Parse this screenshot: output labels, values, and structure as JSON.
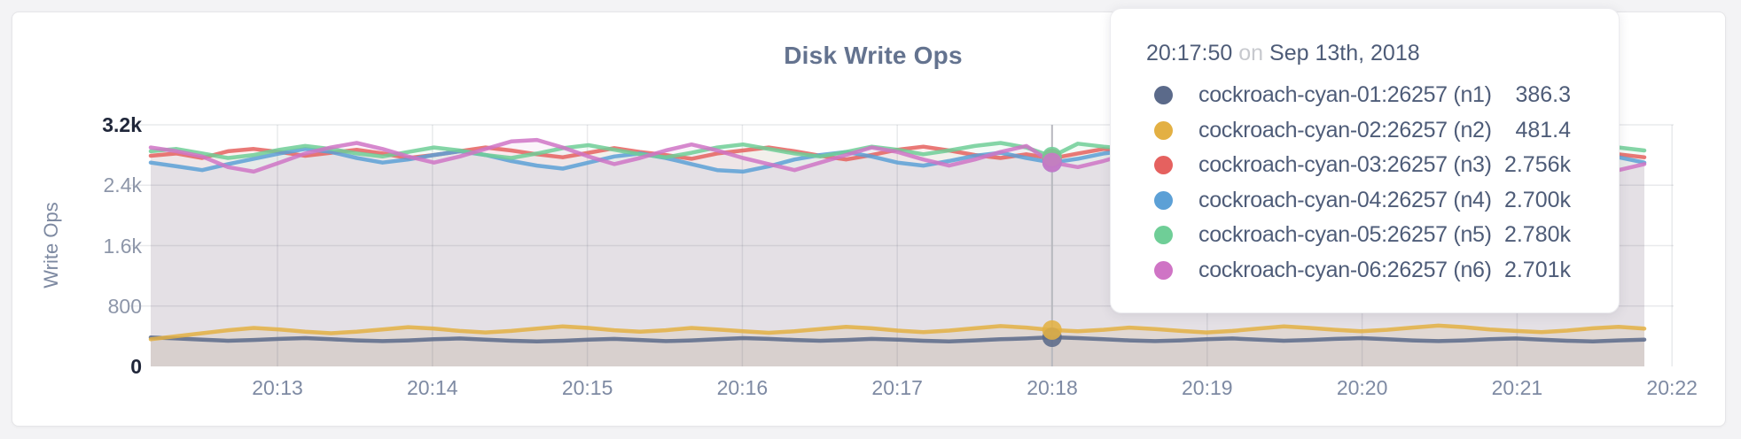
{
  "panel": {
    "title": "Disk Write Ops",
    "y_axis_label": "Write Ops"
  },
  "tooltip": {
    "time": "20:17:50",
    "preposition": "on",
    "date": "Sep 13th, 2018"
  },
  "chart_data": {
    "type": "area",
    "title": "Disk Write Ops",
    "ylabel": "Write Ops",
    "ylim": [
      0,
      3200
    ],
    "grid": true,
    "x_tick_labels": [
      "20:13",
      "20:14",
      "20:15",
      "20:16",
      "20:17",
      "20:18",
      "20:19",
      "20:20",
      "20:21",
      "20:22"
    ],
    "y_ticks": [
      {
        "label": "0",
        "value": 0,
        "emphasis": true
      },
      {
        "label": "800",
        "value": 800,
        "emphasis": false
      },
      {
        "label": "1.6k",
        "value": 1600,
        "emphasis": false
      },
      {
        "label": "2.4k",
        "value": 2400,
        "emphasis": false
      },
      {
        "label": "3.2k",
        "value": 3200,
        "emphasis": true
      }
    ],
    "sample_interval_seconds": 10,
    "hover_index": 35,
    "series": [
      {
        "name": "cockroach-cyan-01:26257 (n1)",
        "color": "#5b6a8a",
        "fill_opacity": 0.08,
        "hover_value_display": "386.3",
        "values": [
          385,
          370,
          355,
          340,
          350,
          365,
          375,
          360,
          345,
          335,
          345,
          360,
          370,
          355,
          340,
          330,
          340,
          355,
          365,
          350,
          335,
          345,
          360,
          375,
          365,
          350,
          340,
          350,
          365,
          355,
          340,
          330,
          345,
          360,
          370,
          386.3,
          375,
          360,
          345,
          335,
          345,
          360,
          370,
          355,
          340,
          350,
          365,
          375,
          360,
          345,
          335,
          345,
          360,
          370,
          355,
          340,
          330,
          345,
          355
        ]
      },
      {
        "name": "cockroach-cyan-02:26257 (n2)",
        "color": "#e3b043",
        "fill_opacity": 0.12,
        "hover_value_display": "481.4",
        "values": [
          360,
          400,
          440,
          480,
          510,
          490,
          460,
          440,
          460,
          490,
          520,
          500,
          470,
          450,
          470,
          500,
          530,
          510,
          480,
          460,
          480,
          510,
          490,
          465,
          445,
          465,
          495,
          525,
          505,
          475,
          455,
          475,
          505,
          535,
          515,
          481.4,
          465,
          485,
          515,
          495,
          470,
          450,
          470,
          500,
          530,
          510,
          485,
          465,
          485,
          515,
          540,
          520,
          490,
          470,
          455,
          475,
          505,
          525,
          500
        ]
      },
      {
        "name": "cockroach-cyan-03:26257 (n3)",
        "color": "#e5615f",
        "fill_opacity": 0.08,
        "hover_value_display": "2.756k",
        "values": [
          2790,
          2820,
          2760,
          2850,
          2880,
          2840,
          2790,
          2830,
          2870,
          2820,
          2760,
          2800,
          2850,
          2900,
          2860,
          2810,
          2770,
          2830,
          2890,
          2840,
          2800,
          2750,
          2820,
          2860,
          2900,
          2850,
          2790,
          2740,
          2800,
          2870,
          2910,
          2860,
          2800,
          2760,
          2810,
          2756,
          2820,
          2880,
          2840,
          2790,
          2750,
          2800,
          2860,
          2820,
          2770,
          2830,
          2890,
          2850,
          2800,
          2760,
          2820,
          2870,
          2830,
          2780,
          2740,
          2800,
          2850,
          2810,
          2770
        ]
      },
      {
        "name": "cockroach-cyan-04:26257 (n4)",
        "color": "#5ca0d6",
        "fill_opacity": 0.08,
        "hover_value_display": "2.700k",
        "values": [
          2700,
          2650,
          2600,
          2680,
          2750,
          2820,
          2880,
          2840,
          2760,
          2700,
          2740,
          2800,
          2850,
          2800,
          2720,
          2660,
          2620,
          2700,
          2780,
          2820,
          2760,
          2680,
          2600,
          2580,
          2650,
          2740,
          2800,
          2840,
          2780,
          2700,
          2660,
          2720,
          2790,
          2830,
          2760,
          2700,
          2750,
          2820,
          2860,
          2800,
          2720,
          2650,
          2700,
          2780,
          2840,
          2790,
          2710,
          2660,
          2720,
          2800,
          2850,
          2790,
          2700,
          2640,
          2690,
          2760,
          2830,
          2770,
          2700
        ]
      },
      {
        "name": "cockroach-cyan-05:26257 (n5)",
        "color": "#6fce97",
        "fill_opacity": 0.08,
        "hover_value_display": "2.780k",
        "values": [
          2850,
          2880,
          2820,
          2760,
          2800,
          2870,
          2920,
          2880,
          2820,
          2780,
          2840,
          2900,
          2860,
          2800,
          2760,
          2820,
          2890,
          2930,
          2870,
          2810,
          2770,
          2830,
          2900,
          2940,
          2880,
          2820,
          2780,
          2840,
          2910,
          2870,
          2810,
          2860,
          2920,
          2960,
          2900,
          2780,
          2950,
          2910,
          2880,
          2890,
          2830,
          2790,
          2850,
          2920,
          2880,
          2820,
          2860,
          2930,
          2890,
          2830,
          2790,
          2850,
          2910,
          2870,
          2810,
          2770,
          2840,
          2900,
          2860
        ]
      },
      {
        "name": "cockroach-cyan-06:26257 (n6)",
        "color": "#cf74c5",
        "fill_opacity": 0.08,
        "hover_value_display": "2.701k",
        "values": [
          2900,
          2850,
          2780,
          2640,
          2580,
          2700,
          2820,
          2900,
          2960,
          2880,
          2780,
          2700,
          2780,
          2880,
          2980,
          3000,
          2900,
          2780,
          2680,
          2760,
          2860,
          2940,
          2860,
          2760,
          2680,
          2600,
          2700,
          2800,
          2900,
          2840,
          2740,
          2660,
          2740,
          2840,
          2920,
          2701,
          2640,
          2720,
          2820,
          2900,
          2960,
          2880,
          2780,
          2700,
          2620,
          2700,
          2800,
          2880,
          2820,
          2720,
          2640,
          2720,
          2820,
          2900,
          2840,
          2740,
          2660,
          2600,
          2680
        ]
      }
    ]
  }
}
